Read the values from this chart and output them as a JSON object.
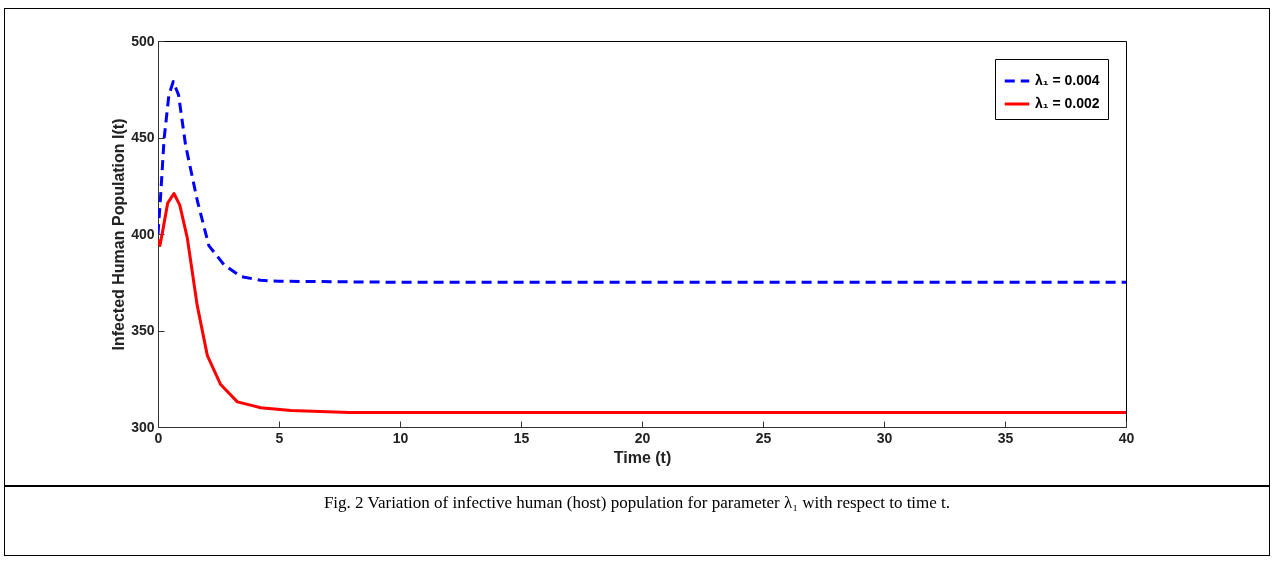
{
  "chart_data": {
    "type": "line",
    "xlabel": "Time (t)",
    "ylabel": "Infected Human Population I(t)",
    "xlim": [
      0,
      40
    ],
    "ylim": [
      300,
      500
    ],
    "xticks": [
      0,
      5,
      10,
      15,
      20,
      25,
      30,
      35,
      40
    ],
    "yticks": [
      300,
      350,
      400,
      450,
      500
    ],
    "grid": false,
    "legend": "top right",
    "annotations": [
      "Fig. 2 Variation of infective human (host) population for parameter λ₁ with respect to time t."
    ],
    "series": [
      {
        "name": "λ₁ = 0.004",
        "color": "#0000ff",
        "line_style": "dashed",
        "x": [
          0,
          0.11,
          0.25,
          0.45,
          0.63,
          0.85,
          1.14,
          1.63,
          2.1,
          2.73,
          3.42,
          4.24,
          5,
          10,
          20,
          30,
          40
        ],
        "values": [
          400,
          420,
          449,
          472,
          479,
          472,
          446,
          417,
          394,
          384,
          378,
          376,
          375.5,
          375,
          375,
          375,
          375
        ]
      },
      {
        "name": "λ₁ = 0.002",
        "color": "#ff0000",
        "line_style": "solid",
        "x": [
          0,
          0.08,
          0.2,
          0.4,
          0.66,
          0.9,
          1.21,
          1.62,
          2.04,
          2.59,
          3.28,
          4.24,
          5.5,
          7.9,
          15,
          25,
          40
        ],
        "values": [
          397,
          394,
          402,
          416,
          421,
          415,
          398,
          363,
          337,
          322,
          313,
          310,
          308.5,
          307.5,
          307.5,
          307.5,
          307.5
        ]
      }
    ]
  }
}
